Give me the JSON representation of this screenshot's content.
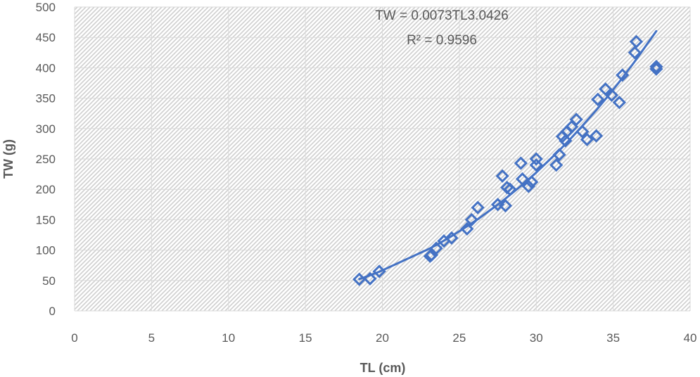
{
  "chart_data": {
    "type": "scatter",
    "title": "",
    "xlabel": "TL (cm)",
    "ylabel": "TW (g)",
    "xlim": [
      0,
      40
    ],
    "ylim": [
      0,
      500
    ],
    "x_ticks": [
      0,
      5,
      10,
      15,
      20,
      25,
      30,
      35,
      40
    ],
    "y_ticks": [
      0,
      50,
      100,
      150,
      200,
      250,
      300,
      350,
      400,
      450,
      500
    ],
    "grid": true,
    "legend": "none",
    "colors": {
      "series": "#4472c4",
      "axis_text": "#595959",
      "grid": "#d9d9d9"
    },
    "trendline": {
      "type": "power",
      "coefficient": 0.0073,
      "exponent": 3.0426,
      "x_range": [
        18.5,
        37.8
      ],
      "equation": "TW = 0.0073TL3.0426",
      "r_squared": "R² = 0.9596"
    },
    "series": [
      {
        "marker": "diamond-open",
        "x": [
          18.5,
          19.2,
          19.8,
          23.1,
          23.2,
          23.5,
          24.0,
          24.5,
          25.5,
          25.8,
          26.2,
          27.5,
          27.8,
          28.0,
          28.1,
          28.3,
          29.0,
          29.1,
          29.5,
          29.7,
          30.0,
          30.0,
          31.3,
          31.5,
          31.7,
          31.9,
          32.0,
          32.3,
          32.6,
          33.0,
          33.3,
          33.9,
          34.0,
          34.5,
          34.9,
          35.4,
          35.6,
          36.4,
          36.5,
          37.8,
          37.8
        ],
        "y": [
          52,
          53,
          65,
          90,
          92,
          103,
          115,
          120,
          135,
          150,
          170,
          175,
          222,
          173,
          203,
          200,
          243,
          217,
          205,
          212,
          240,
          250,
          240,
          257,
          287,
          280,
          295,
          303,
          315,
          295,
          282,
          288,
          348,
          365,
          355,
          343,
          388,
          425,
          443,
          398,
          402
        ]
      }
    ]
  }
}
